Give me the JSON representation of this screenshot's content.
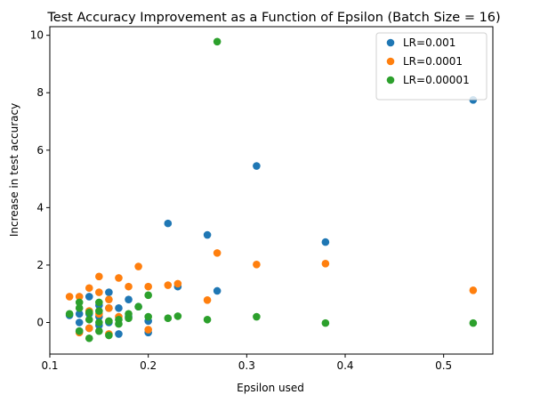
{
  "chart_data": {
    "type": "scatter",
    "title": "Test Accuracy Improvement as a Function of Epsilon (Batch Size = 16)",
    "xlabel": "Epsilon used",
    "ylabel": "Increase in test accuracy",
    "xlim": [
      0.1,
      0.55
    ],
    "ylim": [
      -1.1,
      10.3
    ],
    "xticks": [
      0.1,
      0.2,
      0.3,
      0.4,
      0.5
    ],
    "xtick_labels": [
      "0.1",
      "0.2",
      "0.3",
      "0.4",
      "0.5"
    ],
    "yticks": [
      0,
      2,
      4,
      6,
      8,
      10
    ],
    "ytick_labels": [
      "0",
      "2",
      "4",
      "6",
      "8",
      "10"
    ],
    "grid": false,
    "legend_position": "top-right",
    "series": [
      {
        "name": "LR=0.001",
        "color": "#1f77b4",
        "points": [
          [
            0.12,
            0.25
          ],
          [
            0.13,
            0.0
          ],
          [
            0.13,
            0.3
          ],
          [
            0.13,
            -0.3
          ],
          [
            0.14,
            0.9
          ],
          [
            0.14,
            0.3
          ],
          [
            0.14,
            -0.2
          ],
          [
            0.15,
            0.6
          ],
          [
            0.15,
            0.2
          ],
          [
            0.15,
            -0.1
          ],
          [
            0.16,
            1.05
          ],
          [
            0.16,
            0.5
          ],
          [
            0.16,
            0.0
          ],
          [
            0.17,
            0.5
          ],
          [
            0.17,
            -0.4
          ],
          [
            0.18,
            0.8
          ],
          [
            0.18,
            0.2
          ],
          [
            0.19,
            0.55
          ],
          [
            0.2,
            0.05
          ],
          [
            0.2,
            -0.35
          ],
          [
            0.22,
            3.45
          ],
          [
            0.23,
            1.25
          ],
          [
            0.26,
            3.05
          ],
          [
            0.27,
            1.1
          ],
          [
            0.31,
            5.45
          ],
          [
            0.38,
            2.8
          ],
          [
            0.53,
            7.75
          ]
        ]
      },
      {
        "name": "LR=0.0001",
        "color": "#ff7f0e",
        "points": [
          [
            0.12,
            0.9
          ],
          [
            0.13,
            0.9
          ],
          [
            0.13,
            -0.35
          ],
          [
            0.14,
            1.2
          ],
          [
            0.14,
            0.4
          ],
          [
            0.14,
            -0.2
          ],
          [
            0.15,
            1.6
          ],
          [
            0.15,
            1.05
          ],
          [
            0.15,
            0.3
          ],
          [
            0.16,
            0.8
          ],
          [
            0.16,
            0.5
          ],
          [
            0.16,
            -0.4
          ],
          [
            0.17,
            1.55
          ],
          [
            0.17,
            0.2
          ],
          [
            0.18,
            1.25
          ],
          [
            0.19,
            1.95
          ],
          [
            0.2,
            1.25
          ],
          [
            0.2,
            -0.25
          ],
          [
            0.22,
            1.3
          ],
          [
            0.23,
            1.35
          ],
          [
            0.26,
            0.78
          ],
          [
            0.27,
            2.42
          ],
          [
            0.31,
            2.02
          ],
          [
            0.38,
            2.05
          ],
          [
            0.53,
            1.12
          ]
        ]
      },
      {
        "name": "LR=0.00001",
        "color": "#2ca02c",
        "points": [
          [
            0.12,
            0.3
          ],
          [
            0.13,
            0.7
          ],
          [
            0.13,
            0.5
          ],
          [
            0.13,
            -0.3
          ],
          [
            0.14,
            0.35
          ],
          [
            0.14,
            0.1
          ],
          [
            0.14,
            -0.55
          ],
          [
            0.15,
            0.7
          ],
          [
            0.15,
            0.4
          ],
          [
            0.15,
            0.0
          ],
          [
            0.15,
            -0.3
          ],
          [
            0.16,
            0.05
          ],
          [
            0.16,
            -0.45
          ],
          [
            0.17,
            0.1
          ],
          [
            0.17,
            -0.05
          ],
          [
            0.18,
            0.3
          ],
          [
            0.18,
            0.15
          ],
          [
            0.19,
            0.55
          ],
          [
            0.2,
            0.95
          ],
          [
            0.2,
            0.2
          ],
          [
            0.22,
            0.15
          ],
          [
            0.23,
            0.22
          ],
          [
            0.26,
            0.1
          ],
          [
            0.27,
            9.78
          ],
          [
            0.31,
            0.2
          ],
          [
            0.38,
            -0.02
          ],
          [
            0.53,
            -0.02
          ]
        ]
      }
    ]
  }
}
